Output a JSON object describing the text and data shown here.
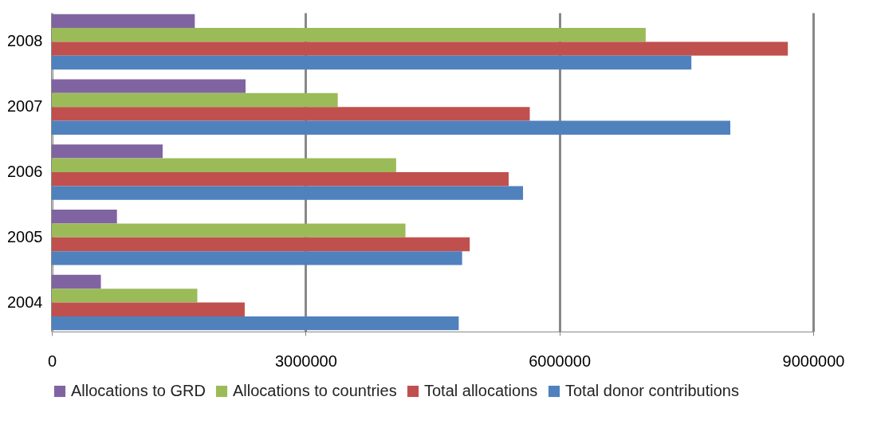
{
  "chart_data": {
    "type": "bar",
    "orientation": "horizontal",
    "categories": [
      "2008",
      "2007",
      "2006",
      "2005",
      "2004"
    ],
    "series": [
      {
        "name": "Allocations to GRD",
        "color": "#8064a2",
        "values": [
          1690000,
          2290000,
          1310000,
          770000,
          580000
        ]
      },
      {
        "name": "Allocations to countries",
        "color": "#9bbb59",
        "values": [
          7020000,
          3380000,
          4070000,
          4180000,
          1720000
        ]
      },
      {
        "name": "Total allocations",
        "color": "#c0504d",
        "values": [
          8700000,
          5650000,
          5400000,
          4940000,
          2280000
        ]
      },
      {
        "name": "Total donor contributions",
        "color": "#4f81bd",
        "values": [
          7560000,
          8020000,
          5570000,
          4850000,
          4810000
        ]
      }
    ],
    "xlim": [
      0,
      9000000
    ],
    "xticks": [
      0,
      3000000,
      6000000,
      9000000
    ],
    "grid": "x",
    "legend": "bottom"
  }
}
